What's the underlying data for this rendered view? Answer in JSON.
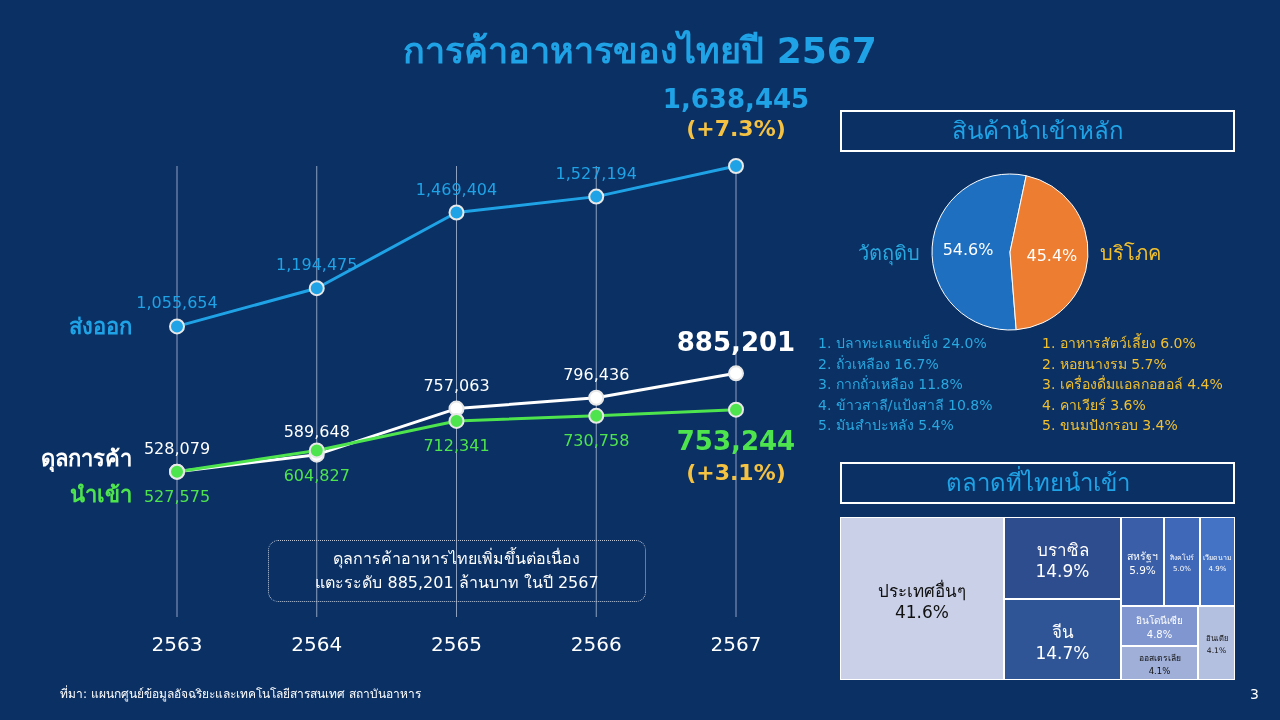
{
  "chart_data": [
    {
      "type": "line",
      "title": "การค้าอาหารของไทยปี 2567",
      "categories": [
        "2563",
        "2564",
        "2565",
        "2566",
        "2567"
      ],
      "series": [
        {
          "name": "ส่งออก",
          "color": "#1fa3e6",
          "values": [
            1055654,
            1194475,
            1469404,
            1527194,
            1638445
          ],
          "value_labels": [
            "1,055,654",
            "1,194,475",
            "1,469,404",
            "1,527,194",
            "1,638,445"
          ]
        },
        {
          "name": "ดุลการค้า",
          "color": "#ffffff",
          "values": [
            528079,
            589648,
            757063,
            796436,
            885201
          ],
          "value_labels": [
            "528,079",
            "589,648",
            "757,063",
            "796,436",
            "885,201"
          ]
        },
        {
          "name": "นำเข้า",
          "color": "#4ee44e",
          "values": [
            527575,
            604827,
            712341,
            730758,
            753244
          ],
          "value_labels": [
            "527,575",
            "604,827",
            "712,341",
            "730,758",
            "753,244"
          ]
        }
      ],
      "marker": "circle",
      "grid": "x",
      "annotations": [
        {
          "text": "(+7.3%)",
          "x": "2567",
          "y": 1638445
        },
        {
          "text": "(+3.1%)",
          "x": "2567",
          "y": 753244
        },
        "ดุลการค้าอาหารไทยเพิ่มขึ้นต่อเนื่อง\nแตะระดับ 885,201 ล้านบาท ในปี 2567",
        "ที่มา: แผนกศูนย์ข้อมูลอัจฉริยะและเทคโนโลยีสารสนเทศ สถาบันอาหาร",
        "3"
      ]
    },
    {
      "type": "pie",
      "title": "สินค้านำเข้าหลัก",
      "categories": [
        "วัตถุดิบ",
        "บริโภค"
      ],
      "values": [
        54.6,
        45.4
      ],
      "colors": [
        "#1f6fc0",
        "#ed7d31"
      ],
      "value_labels": [
        "54.6%",
        "45.4%"
      ],
      "annotations": [
        "1. ปลาทะเลแช่แข็ง 24.0%",
        "2. ถั่วเหลือง 16.7%",
        "3. กากถั่วเหลือง 11.8%",
        "4. ข้าวสาลี/แป้งสาลี 10.8%",
        "5. มันสำปะหลัง 5.4%",
        "1. อาหารสัตว์เลี้ยง 6.0%",
        "2. หอยนางรม 5.7%",
        "3. เครื่องดื่มแอลกอฮอล์ 4.4%",
        "4. คาเวียร์ 3.6%",
        "5. ขนมปังกรอบ 3.4%"
      ]
    },
    {
      "type": "other",
      "title": "ตลาดที่ไทยนำเข้า",
      "categories": [
        "ประเทศอื่นๆ",
        "บราซิล",
        "จีน",
        "สหรัฐฯ",
        "สิงคโปร์",
        "เวียดนาม",
        "อินโดนีเซีย",
        "ออสเตรเลีย",
        "อินเดีย"
      ],
      "values": [
        41.6,
        14.9,
        14.7,
        5.9,
        5.0,
        4.9,
        4.8,
        4.1,
        4.1
      ],
      "colors": [
        "#c9d0e8",
        "#2e4d8f",
        "#2f5597",
        "#3a5fa8",
        "#4068b8",
        "#4472c4",
        "#7f96d0",
        "#a0afd8",
        "#b4c0e0"
      ],
      "value_labels": [
        "41.6%",
        "14.9%",
        "14.7%",
        "5.9%",
        "5.0%",
        "4.9%",
        "4.8%",
        "4.1%",
        "4.1%"
      ]
    }
  ]
}
